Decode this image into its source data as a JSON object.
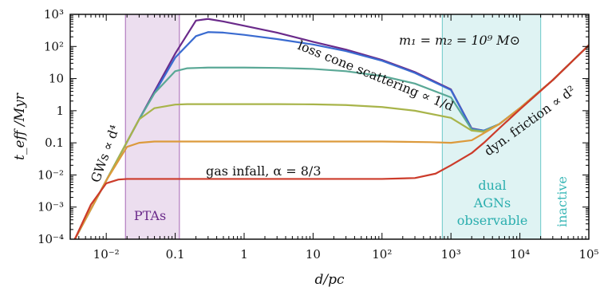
{
  "chart_data": {
    "type": "line",
    "x_scale": "log",
    "y_scale": "log",
    "xlim": [
      0.003,
      100000
    ],
    "ylim": [
      0.0001,
      1000
    ],
    "xlabel": "d/pc",
    "ylabel": "t_eff /Myr",
    "x_ticks": [
      {
        "value": 0.01,
        "label": "10⁻²"
      },
      {
        "value": 0.1,
        "label": "0.1"
      },
      {
        "value": 1,
        "label": "1"
      },
      {
        "value": 10,
        "label": "10"
      },
      {
        "value": 100,
        "label": "10²"
      },
      {
        "value": 1000,
        "label": "10³"
      },
      {
        "value": 10000,
        "label": "10⁴"
      },
      {
        "value": 100000,
        "label": "10⁵"
      }
    ],
    "y_ticks": [
      {
        "value": 0.0001,
        "label": "10⁻⁴"
      },
      {
        "value": 0.001,
        "label": "10⁻³"
      },
      {
        "value": 0.01,
        "label": "10⁻²"
      },
      {
        "value": 0.1,
        "label": "0.1"
      },
      {
        "value": 1,
        "label": "1"
      },
      {
        "value": 10,
        "label": "10"
      },
      {
        "value": 100,
        "label": "10²"
      },
      {
        "value": 1000,
        "label": "10³"
      }
    ],
    "bands": [
      {
        "label": "PTAs",
        "x_range": [
          0.019,
          0.115
        ],
        "color": "#b27cc0"
      },
      {
        "label": "dual AGNs observable",
        "lines": [
          "dual",
          "AGNs",
          "observable"
        ],
        "x_range": [
          750,
          20000
        ],
        "color": "#7fd0d0"
      }
    ],
    "series": [
      {
        "color": "#6a2a8a",
        "x": [
          0.0035,
          0.01,
          0.03,
          0.1,
          0.2,
          0.3,
          0.5,
          1,
          3,
          10,
          30,
          100,
          300,
          1000,
          2000,
          3000,
          5000,
          10000,
          30000,
          100000
        ],
        "y": [
          0.0001,
          0.0067,
          0.54,
          60,
          640,
          720,
          600,
          440,
          270,
          140,
          80,
          38,
          16,
          4.6,
          0.28,
          0.24,
          0.38,
          1.2,
          9,
          110
        ]
      },
      {
        "color": "#3a6bd0",
        "x": [
          0.0035,
          0.01,
          0.03,
          0.1,
          0.2,
          0.3,
          0.5,
          1,
          3,
          10,
          30,
          100,
          300,
          1000,
          2000,
          3000,
          5000,
          10000,
          30000,
          100000
        ],
        "y": [
          0.0001,
          0.0067,
          0.54,
          45,
          210,
          280,
          270,
          230,
          170,
          115,
          72,
          36,
          15,
          4.4,
          0.27,
          0.24,
          0.38,
          1.2,
          9,
          110
        ]
      },
      {
        "color": "#5aa896",
        "x": [
          0.0035,
          0.01,
          0.03,
          0.05,
          0.1,
          0.15,
          0.3,
          1,
          3,
          10,
          30,
          100,
          300,
          1000,
          2000,
          3000,
          5000,
          10000,
          30000,
          100000
        ],
        "y": [
          0.0001,
          0.0067,
          0.54,
          3.5,
          17,
          21,
          22,
          22,
          21.5,
          20,
          17,
          12,
          7,
          2.6,
          0.26,
          0.23,
          0.38,
          1.2,
          9,
          110
        ]
      },
      {
        "color": "#a8b44a",
        "x": [
          0.0035,
          0.01,
          0.03,
          0.05,
          0.1,
          0.15,
          0.3,
          1,
          3,
          10,
          30,
          100,
          300,
          1000,
          2000,
          3000,
          5000,
          10000,
          30000,
          100000
        ],
        "y": [
          0.0001,
          0.0067,
          0.54,
          1.2,
          1.55,
          1.6,
          1.6,
          1.6,
          1.6,
          1.58,
          1.5,
          1.3,
          1.0,
          0.6,
          0.24,
          0.22,
          0.38,
          1.2,
          9,
          110
        ]
      },
      {
        "color": "#dc9a3c",
        "x": [
          0.0035,
          0.01,
          0.02,
          0.03,
          0.05,
          0.1,
          1,
          10,
          100,
          500,
          1000,
          2000,
          3000,
          5000,
          10000,
          30000,
          100000
        ],
        "y": [
          0.0001,
          0.0067,
          0.075,
          0.1,
          0.11,
          0.11,
          0.11,
          0.11,
          0.11,
          0.105,
          0.1,
          0.12,
          0.2,
          0.38,
          1.2,
          9,
          110
        ]
      },
      {
        "color": "#cc3b2a",
        "x": [
          0.0035,
          0.006,
          0.01,
          0.015,
          0.02,
          0.03,
          0.1,
          1,
          10,
          100,
          300,
          600,
          1000,
          2000,
          3000,
          5000,
          10000,
          30000,
          100000
        ],
        "y": [
          0.0001,
          0.0012,
          0.0055,
          0.0072,
          0.0075,
          0.0075,
          0.0075,
          0.0075,
          0.0075,
          0.0075,
          0.008,
          0.011,
          0.02,
          0.048,
          0.1,
          0.28,
          1.1,
          9,
          110
        ]
      }
    ],
    "annotations": [
      {
        "id": "mass",
        "text": "m₁ = m₂ = 10⁹ M⊙"
      },
      {
        "id": "gw",
        "text": "GWs ∝ d⁴"
      },
      {
        "id": "loss",
        "text": "loss cone scattering ∝ 1/d"
      },
      {
        "id": "gas",
        "text": "gas infall, α = 8/3"
      },
      {
        "id": "dyn",
        "text": "dyn. friction ∝ d²"
      },
      {
        "id": "inactive",
        "text": "inactive"
      }
    ]
  }
}
